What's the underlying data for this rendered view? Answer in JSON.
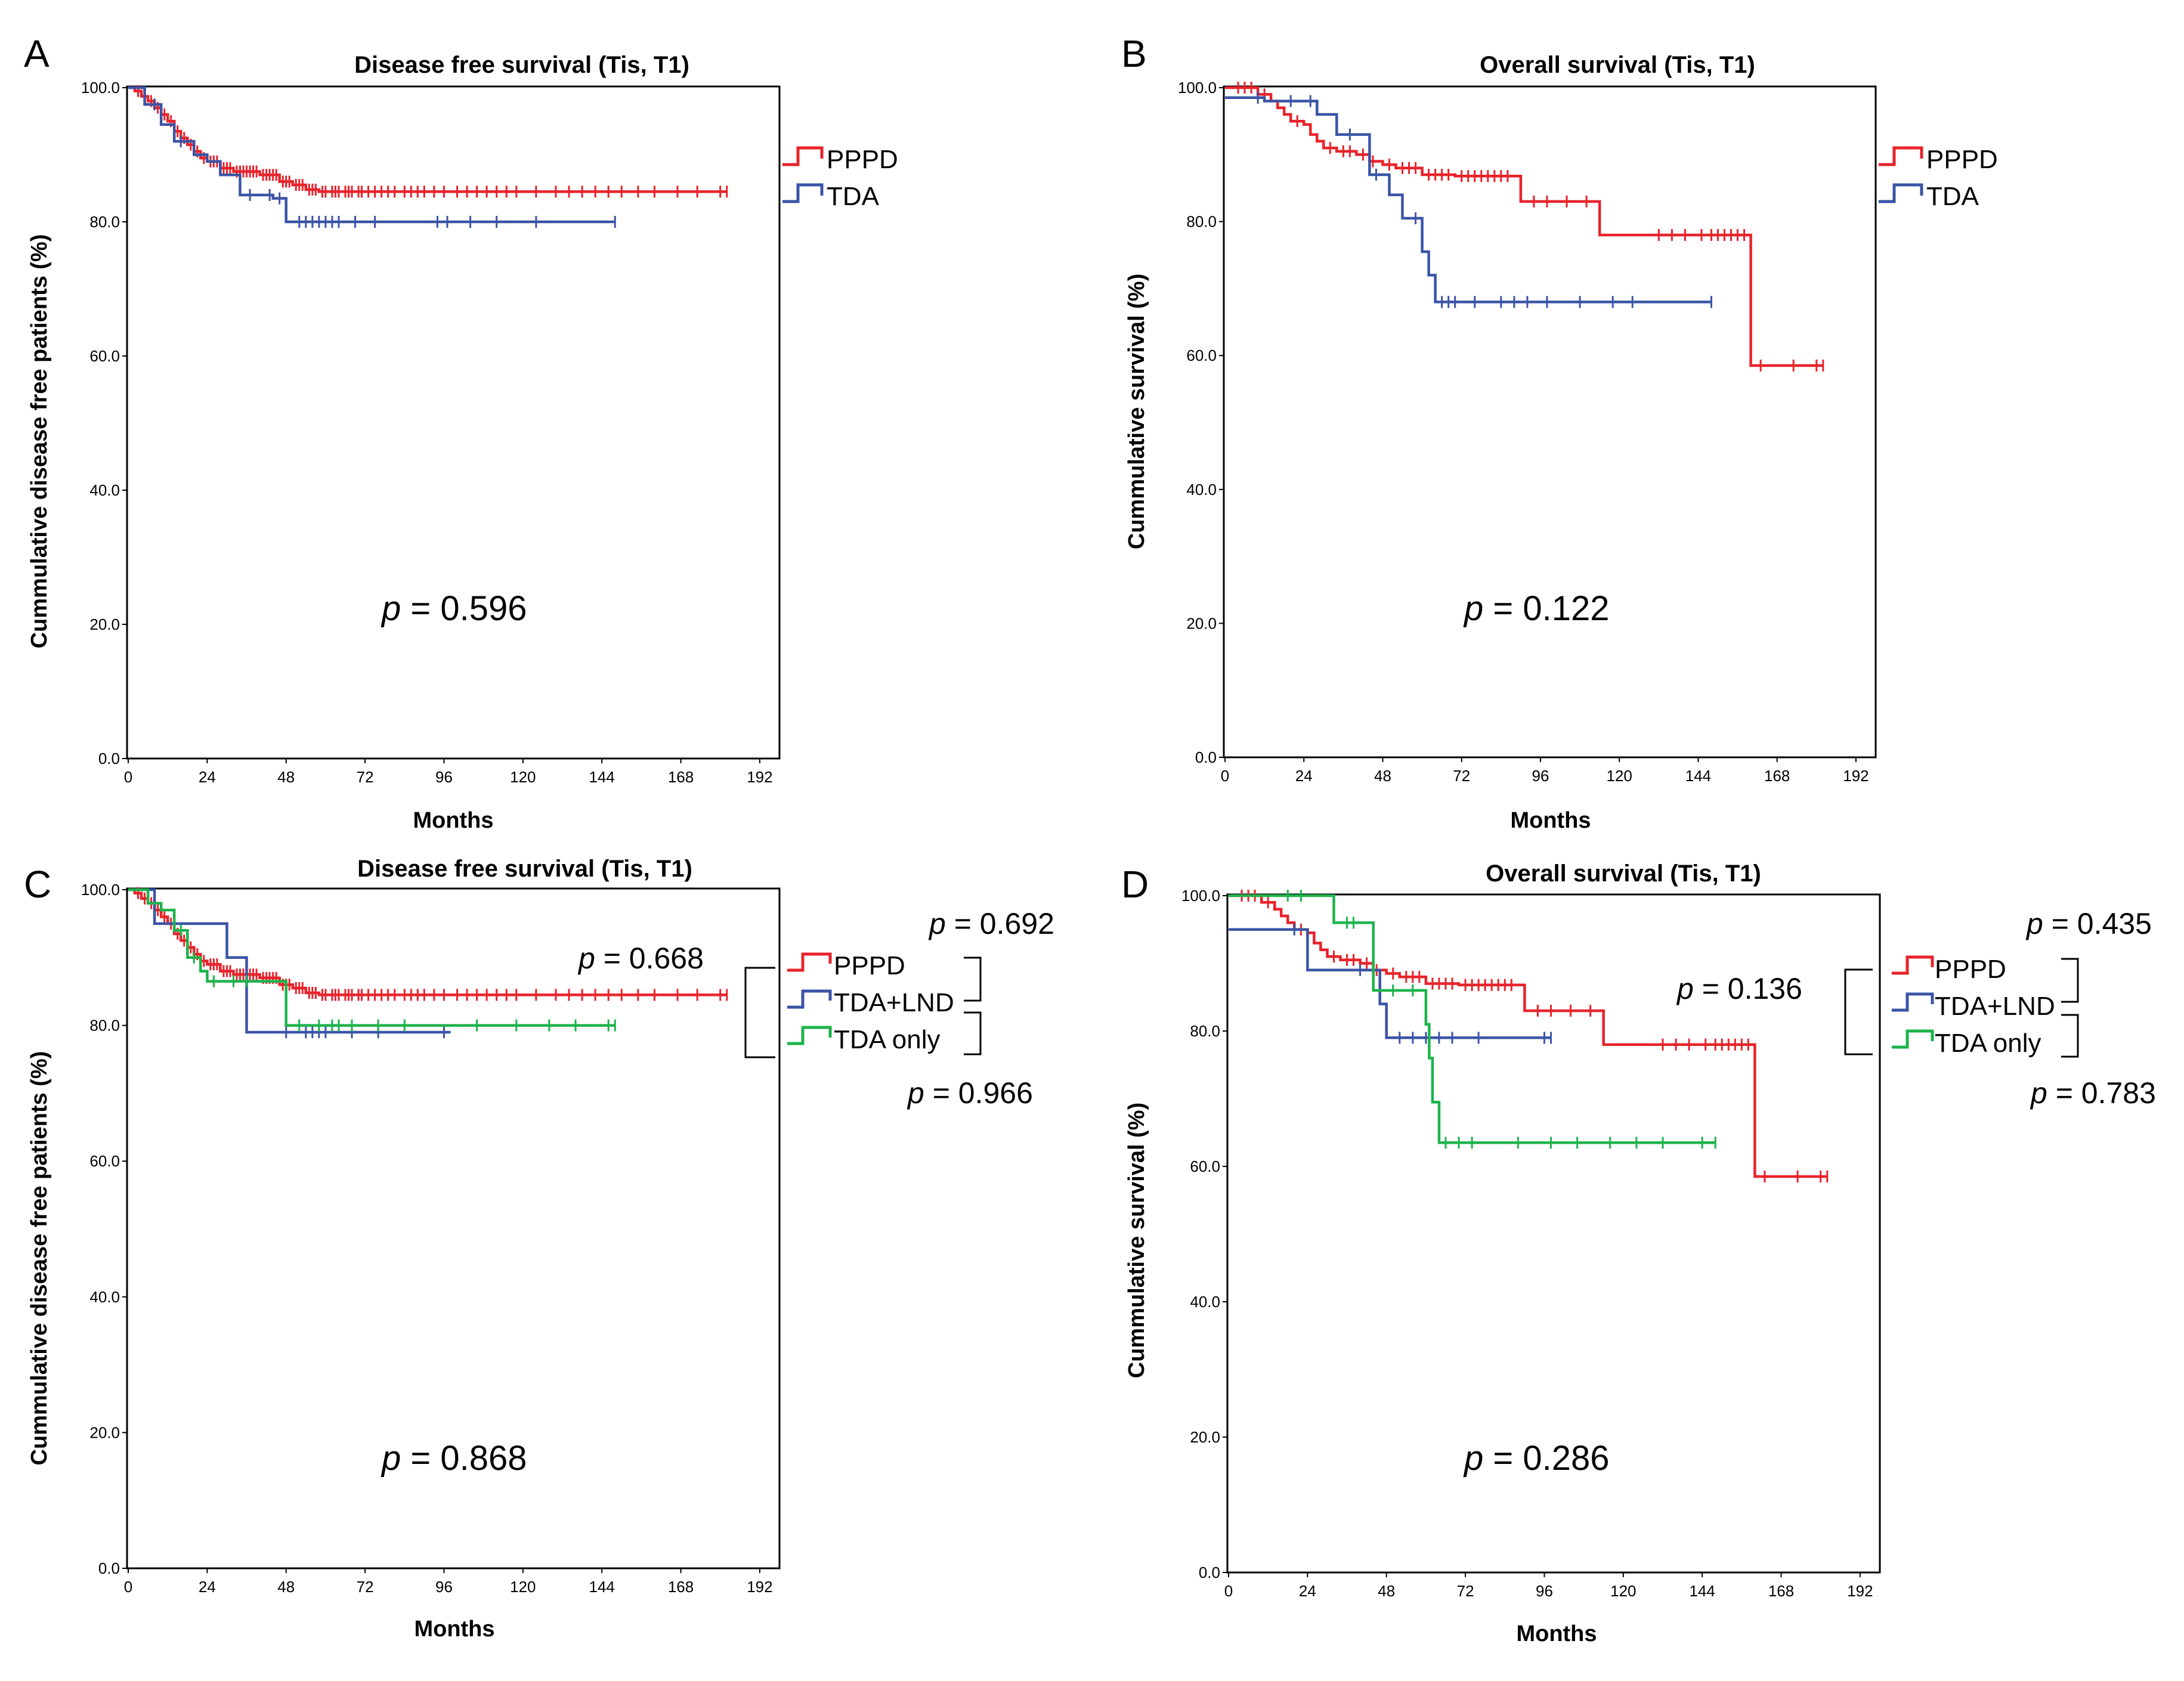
{
  "chart_data": [
    {
      "panel": "A",
      "type": "line",
      "subtype": "kaplan-meier",
      "title": "Disease free survival (Tis, T1)",
      "xlabel": "Months",
      "ylabel": "Cummulative disease free patients (%)",
      "xlim": [
        0,
        198
      ],
      "ylim": [
        0,
        100
      ],
      "xticks": [
        "0",
        "24",
        "48",
        "72",
        "96",
        "120",
        "144",
        "168",
        "192"
      ],
      "yticks": [
        "0.0",
        "20.0",
        "40.0",
        "60.0",
        "80.0",
        "100.0"
      ],
      "series": [
        {
          "name": "PPPD",
          "color": "#e8232b",
          "steps": [
            [
              0,
              100
            ],
            [
              2,
              99.5
            ],
            [
              4,
              98.7
            ],
            [
              6,
              98
            ],
            [
              8,
              97
            ],
            [
              10,
              96
            ],
            [
              12,
              95
            ],
            [
              14,
              93.5
            ],
            [
              16,
              92.5
            ],
            [
              18,
              91.5
            ],
            [
              20,
              90.5
            ],
            [
              22,
              89.5
            ],
            [
              24,
              89
            ],
            [
              28,
              88
            ],
            [
              32,
              87.5
            ],
            [
              40,
              87
            ],
            [
              46,
              86
            ],
            [
              50,
              85.5
            ],
            [
              54,
              84.8
            ],
            [
              58,
              84.5
            ],
            [
              182,
              84.5
            ]
          ],
          "censor": [
            3,
            5,
            7,
            9,
            11,
            13,
            15,
            17,
            19,
            21,
            23,
            25,
            26,
            27,
            29,
            30,
            31,
            33,
            34,
            35,
            36,
            37,
            38,
            39,
            41,
            42,
            43,
            44,
            45,
            47,
            48,
            49,
            51,
            52,
            53,
            55,
            56,
            57,
            59,
            60,
            62,
            63,
            64,
            66,
            67,
            68,
            70,
            71,
            73,
            75,
            77,
            79,
            81,
            84,
            86,
            88,
            90,
            93,
            96,
            100,
            103,
            106,
            109,
            112,
            115,
            118,
            124,
            130,
            134,
            138,
            142,
            146,
            150,
            155,
            160,
            167,
            173,
            180,
            182
          ]
        },
        {
          "name": "TDA",
          "color": "#3a54a6",
          "steps": [
            [
              0,
              100
            ],
            [
              5,
              97.5
            ],
            [
              10,
              94.5
            ],
            [
              14,
              92
            ],
            [
              20,
              90
            ],
            [
              24,
              89
            ],
            [
              28,
              87
            ],
            [
              34,
              84
            ],
            [
              44,
              83.5
            ],
            [
              48,
              80
            ],
            [
              148,
              80
            ]
          ],
          "censor": [
            8,
            16,
            37,
            43,
            46,
            52,
            54,
            56,
            58,
            60,
            62,
            64,
            69,
            75,
            94,
            97,
            104,
            112,
            124,
            148
          ]
        }
      ],
      "annotations": [
        {
          "text": "p = 0.596",
          "italic": "p",
          "rest": " = 0.596"
        }
      ]
    },
    {
      "panel": "B",
      "type": "line",
      "subtype": "kaplan-meier",
      "title": "Overall survival (Tis, T1)",
      "xlabel": "Months",
      "ylabel": "Cummulative survival (%)",
      "xlim": [
        0,
        198
      ],
      "ylim": [
        0,
        100
      ],
      "xticks": [
        "0",
        "24",
        "48",
        "72",
        "96",
        "120",
        "144",
        "168",
        "192"
      ],
      "yticks": [
        "0.0",
        "20.0",
        "40.0",
        "60.0",
        "80.0",
        "100.0"
      ],
      "series": [
        {
          "name": "PPPD",
          "color": "#e8232b",
          "steps": [
            [
              0,
              100
            ],
            [
              10,
              99
            ],
            [
              14,
              98
            ],
            [
              16,
              97
            ],
            [
              18,
              96
            ],
            [
              20,
              95
            ],
            [
              24,
              94.5
            ],
            [
              26,
              93
            ],
            [
              28,
              92
            ],
            [
              30,
              91
            ],
            [
              34,
              90.5
            ],
            [
              40,
              90
            ],
            [
              44,
              89
            ],
            [
              48,
              88.5
            ],
            [
              52,
              88
            ],
            [
              60,
              87
            ],
            [
              70,
              86.8
            ],
            [
              90,
              83
            ],
            [
              114,
              78
            ],
            [
              160,
              58.5
            ],
            [
              182,
              58.5
            ]
          ],
          "censor": [
            4,
            6,
            8,
            12,
            22,
            32,
            36,
            38,
            42,
            45,
            50,
            54,
            56,
            58,
            62,
            64,
            66,
            68,
            72,
            74,
            76,
            78,
            80,
            82,
            84,
            86,
            94,
            98,
            104,
            110,
            132,
            136,
            140,
            145,
            148,
            150,
            152,
            154,
            156,
            158,
            163,
            173,
            180,
            182
          ]
        },
        {
          "name": "TDA",
          "color": "#3a54a6",
          "steps": [
            [
              0,
              98.5
            ],
            [
              12,
              98
            ],
            [
              28,
              96
            ],
            [
              34,
              93
            ],
            [
              44,
              87
            ],
            [
              50,
              84
            ],
            [
              54,
              80.5
            ],
            [
              60,
              75.5
            ],
            [
              62,
              72
            ],
            [
              64,
              68
            ],
            [
              148,
              68
            ]
          ],
          "censor": [
            10,
            20,
            26,
            38,
            46,
            58,
            66,
            68,
            70,
            76,
            84,
            88,
            92,
            98,
            108,
            118,
            124,
            148
          ]
        }
      ],
      "annotations": [
        {
          "text": "p = 0.122",
          "italic": "p",
          "rest": " = 0.122"
        }
      ]
    },
    {
      "panel": "C",
      "type": "line",
      "subtype": "kaplan-meier",
      "title": "Disease free survival (Tis, T1)",
      "xlabel": "Months",
      "ylabel": "Cummulative disease free patients (%)",
      "xlim": [
        0,
        198
      ],
      "ylim": [
        0,
        100
      ],
      "xticks": [
        "0",
        "24",
        "48",
        "72",
        "96",
        "120",
        "144",
        "168",
        "192"
      ],
      "yticks": [
        "0.0",
        "20.0",
        "40.0",
        "60.0",
        "80.0",
        "100.0"
      ],
      "series": [
        {
          "name": "PPPD",
          "color": "#e8232b",
          "steps": [
            [
              0,
              100
            ],
            [
              2,
              99.5
            ],
            [
              4,
              98.7
            ],
            [
              6,
              98
            ],
            [
              8,
              97
            ],
            [
              10,
              96
            ],
            [
              12,
              95
            ],
            [
              14,
              93.5
            ],
            [
              16,
              92.5
            ],
            [
              18,
              91.5
            ],
            [
              20,
              90.5
            ],
            [
              22,
              89.5
            ],
            [
              24,
              89
            ],
            [
              28,
              88
            ],
            [
              32,
              87.5
            ],
            [
              40,
              87
            ],
            [
              46,
              86
            ],
            [
              50,
              85.5
            ],
            [
              54,
              84.8
            ],
            [
              58,
              84.5
            ],
            [
              182,
              84.5
            ]
          ],
          "censor": [
            3,
            5,
            7,
            9,
            11,
            13,
            15,
            17,
            19,
            21,
            23,
            25,
            26,
            27,
            29,
            30,
            31,
            33,
            34,
            35,
            36,
            37,
            38,
            39,
            41,
            42,
            43,
            44,
            45,
            47,
            48,
            49,
            51,
            52,
            53,
            55,
            56,
            57,
            59,
            60,
            62,
            63,
            64,
            66,
            67,
            68,
            70,
            71,
            73,
            75,
            77,
            79,
            81,
            84,
            86,
            88,
            90,
            93,
            96,
            100,
            103,
            106,
            109,
            112,
            115,
            118,
            124,
            130,
            134,
            138,
            142,
            146,
            150,
            155,
            160,
            167,
            173,
            180,
            182
          ]
        },
        {
          "name": "TDA+LND",
          "color": "#3a54a6",
          "steps": [
            [
              0,
              100
            ],
            [
              8,
              95
            ],
            [
              28,
              95
            ],
            [
              30,
              90
            ],
            [
              36,
              79
            ],
            [
              98,
              79
            ]
          ],
          "censor": [
            48,
            54,
            56,
            58,
            60,
            68,
            76,
            96
          ]
        },
        {
          "name": "TDA only",
          "color": "#1db34b",
          "steps": [
            [
              0,
              100
            ],
            [
              6,
              98
            ],
            [
              10,
              97
            ],
            [
              14,
              94
            ],
            [
              18,
              90
            ],
            [
              22,
              88
            ],
            [
              24,
              86.5
            ],
            [
              46,
              86.5
            ],
            [
              48,
              80
            ],
            [
              148,
              80
            ]
          ],
          "censor": [
            16,
            20,
            26,
            32,
            36,
            52,
            58,
            62,
            64,
            68,
            76,
            84,
            106,
            118,
            128,
            136,
            146,
            148
          ]
        }
      ],
      "annotations": [
        {
          "text": "p = 0.868",
          "italic": "p",
          "rest": " = 0.868"
        },
        {
          "text": "p = 0.668",
          "italic": "p",
          "rest": " = 0.668"
        },
        {
          "text": "p = 0.692",
          "italic": "p",
          "rest": " = 0.692"
        },
        {
          "text": "p = 0.966",
          "italic": "p",
          "rest": " = 0.966"
        }
      ]
    },
    {
      "panel": "D",
      "type": "line",
      "subtype": "kaplan-meier",
      "title": "Overall survival (Tis, T1)",
      "xlabel": "Months",
      "ylabel": "Cummulative survival (%)",
      "xlim": [
        0,
        198
      ],
      "ylim": [
        0,
        100
      ],
      "xticks": [
        "0",
        "24",
        "48",
        "72",
        "96",
        "120",
        "144",
        "168",
        "192"
      ],
      "yticks": [
        "0.0",
        "20.0",
        "40.0",
        "60.0",
        "80.0",
        "100.0"
      ],
      "series": [
        {
          "name": "PPPD",
          "color": "#e8232b",
          "steps": [
            [
              0,
              100
            ],
            [
              10,
              99
            ],
            [
              14,
              98
            ],
            [
              16,
              97
            ],
            [
              18,
              96
            ],
            [
              20,
              95
            ],
            [
              24,
              94.5
            ],
            [
              26,
              93
            ],
            [
              28,
              92
            ],
            [
              30,
              91
            ],
            [
              34,
              90.5
            ],
            [
              40,
              90
            ],
            [
              44,
              89
            ],
            [
              48,
              88.5
            ],
            [
              52,
              88
            ],
            [
              60,
              87
            ],
            [
              70,
              86.8
            ],
            [
              90,
              83
            ],
            [
              114,
              78
            ],
            [
              160,
              58.5
            ],
            [
              182,
              58.5
            ]
          ],
          "censor": [
            4,
            6,
            8,
            12,
            22,
            32,
            36,
            38,
            42,
            45,
            50,
            54,
            56,
            58,
            62,
            64,
            66,
            68,
            72,
            74,
            76,
            78,
            80,
            82,
            84,
            86,
            94,
            98,
            104,
            110,
            132,
            136,
            140,
            145,
            148,
            150,
            152,
            154,
            156,
            158,
            163,
            173,
            180,
            182
          ]
        },
        {
          "name": "TDA+LND",
          "color": "#3a54a6",
          "steps": [
            [
              0,
              95
            ],
            [
              24,
              89
            ],
            [
              46,
              84
            ],
            [
              48,
              79
            ],
            [
              98,
              79
            ]
          ],
          "censor": [
            20,
            40,
            44,
            52,
            56,
            60,
            64,
            68,
            76,
            96,
            98
          ]
        },
        {
          "name": "TDA only",
          "color": "#1db34b",
          "steps": [
            [
              0,
              100
            ],
            [
              30,
              100
            ],
            [
              32,
              96
            ],
            [
              42,
              96
            ],
            [
              44,
              86
            ],
            [
              58,
              86
            ],
            [
              60,
              81
            ],
            [
              61,
              76
            ],
            [
              62,
              69.5
            ],
            [
              64,
              63.5
            ],
            [
              148,
              63.5
            ]
          ],
          "censor": [
            18,
            22,
            36,
            38,
            50,
            56,
            66,
            70,
            74,
            88,
            98,
            106,
            116,
            124,
            132,
            144,
            148
          ]
        }
      ],
      "annotations": [
        {
          "text": "p = 0.286",
          "italic": "p",
          "rest": " = 0.286"
        },
        {
          "text": "p = 0.136",
          "italic": "p",
          "rest": " = 0.136"
        },
        {
          "text": "p = 0.435",
          "italic": "p",
          "rest": " = 0.435"
        },
        {
          "text": "p = 0.783",
          "italic": "p",
          "rest": " = 0.783"
        }
      ]
    }
  ]
}
